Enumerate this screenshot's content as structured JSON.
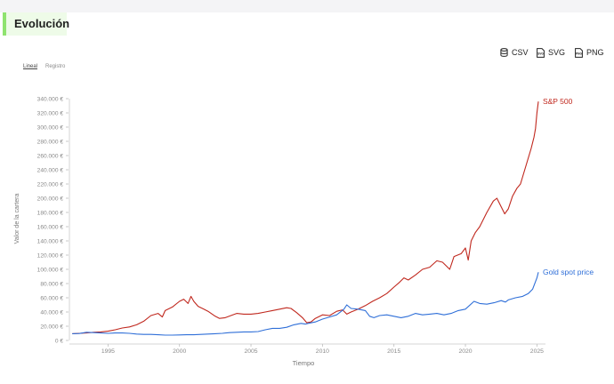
{
  "header": {
    "title": "Evolución"
  },
  "toolbar": {
    "csv_label": "CSV",
    "svg_label": "SVG",
    "png_label": "PNG",
    "svg_icon_text": "SVG",
    "png_icon_text": "PNG"
  },
  "scale_toggle": {
    "linear_label": "Lineal",
    "log_label": "Registro",
    "selected": "Lineal"
  },
  "chart_data": {
    "type": "line",
    "xlabel": "Tiempo",
    "ylabel": "Valor de la cartera",
    "xlim": [
      1992.3,
      2025.6
    ],
    "ylim": [
      0,
      340000
    ],
    "x_ticks": [
      1995,
      2000,
      2005,
      2010,
      2015,
      2020,
      2025
    ],
    "x_tick_labels": [
      "1995",
      "2000",
      "2005",
      "2010",
      "2015",
      "2020",
      "2025"
    ],
    "y_ticks": [
      0,
      20000,
      40000,
      60000,
      80000,
      100000,
      120000,
      140000,
      160000,
      180000,
      200000,
      220000,
      240000,
      260000,
      280000,
      300000,
      320000,
      340000
    ],
    "y_tick_labels": [
      "0 €",
      "20.000 €",
      "40.000 €",
      "60.000 €",
      "80.000 €",
      "100.000 €",
      "120.000 €",
      "140.000 €",
      "160.000 €",
      "180.000 €",
      "200.000 €",
      "220.000 €",
      "240.000 €",
      "260.000 €",
      "280.000 €",
      "300.000 €",
      "320.000 €",
      "340.000 €"
    ],
    "grid": false,
    "legend": "end-of-line labels",
    "series": [
      {
        "name": "S&P 500",
        "color": "#c0281e",
        "x": [
          1992.5,
          1993.0,
          1993.5,
          1994.0,
          1994.5,
          1995.0,
          1995.5,
          1996.0,
          1996.5,
          1997.0,
          1997.5,
          1998.0,
          1998.5,
          1998.8,
          1999.0,
          1999.5,
          2000.0,
          2000.3,
          2000.6,
          2000.8,
          2001.0,
          2001.3,
          2001.7,
          2002.0,
          2002.5,
          2002.8,
          2003.2,
          2003.6,
          2004.0,
          2004.5,
          2005.0,
          2005.5,
          2006.0,
          2006.5,
          2007.0,
          2007.5,
          2007.8,
          2008.2,
          2008.6,
          2008.9,
          2009.2,
          2009.5,
          2010.0,
          2010.5,
          2011.0,
          2011.4,
          2011.7,
          2012.0,
          2012.5,
          2013.0,
          2013.5,
          2014.0,
          2014.5,
          2015.0,
          2015.4,
          2015.7,
          2016.0,
          2016.5,
          2017.0,
          2017.5,
          2018.0,
          2018.4,
          2018.9,
          2019.2,
          2019.7,
          2020.0,
          2020.2,
          2020.4,
          2020.7,
          2021.0,
          2021.5,
          2021.95,
          2022.2,
          2022.5,
          2022.75,
          2023.0,
          2023.3,
          2023.6,
          2023.85,
          2024.0,
          2024.3,
          2024.6,
          2024.8,
          2024.9,
          2025.0,
          2025.1
        ],
        "values": [
          9500,
          10000,
          10500,
          11500,
          12000,
          13000,
          15000,
          17500,
          19000,
          22000,
          27000,
          35000,
          38000,
          33000,
          42000,
          47000,
          55000,
          58000,
          52000,
          62000,
          55000,
          48000,
          44000,
          41000,
          34000,
          31000,
          32000,
          35000,
          38000,
          37000,
          37000,
          38000,
          40000,
          42000,
          44000,
          46000,
          45000,
          39000,
          32000,
          25000,
          26000,
          31000,
          36000,
          35000,
          41000,
          43000,
          37000,
          40000,
          44000,
          49000,
          55000,
          60000,
          66000,
          75000,
          82000,
          88000,
          85000,
          92000,
          100000,
          103000,
          112000,
          110000,
          100000,
          118000,
          122000,
          130000,
          113000,
          140000,
          152000,
          160000,
          180000,
          196000,
          200000,
          188000,
          178000,
          185000,
          203000,
          214000,
          220000,
          230000,
          250000,
          270000,
          286000,
          298000,
          320000,
          336000
        ]
      },
      {
        "name": "Gold spot price",
        "color": "#2f6fd8",
        "x": [
          1992.5,
          1993.0,
          1993.5,
          1994.0,
          1994.5,
          1995.0,
          1995.5,
          1996.0,
          1996.5,
          1997.0,
          1997.5,
          1998.0,
          1998.5,
          1999.0,
          1999.5,
          2000.0,
          2000.5,
          2001.0,
          2001.5,
          2002.0,
          2002.5,
          2003.0,
          2003.5,
          2004.0,
          2004.5,
          2005.0,
          2005.5,
          2006.0,
          2006.5,
          2007.0,
          2007.5,
          2008.0,
          2008.5,
          2008.8,
          2009.0,
          2009.5,
          2010.0,
          2010.5,
          2011.0,
          2011.5,
          2011.7,
          2012.0,
          2012.5,
          2013.0,
          2013.3,
          2013.6,
          2014.0,
          2014.5,
          2015.0,
          2015.5,
          2016.0,
          2016.5,
          2017.0,
          2017.5,
          2018.0,
          2018.5,
          2019.0,
          2019.5,
          2020.0,
          2020.6,
          2021.0,
          2021.5,
          2022.0,
          2022.5,
          2022.8,
          2023.0,
          2023.5,
          2024.0,
          2024.4,
          2024.7,
          2025.0,
          2025.1
        ],
        "values": [
          9500,
          9800,
          11500,
          11000,
          10500,
          10000,
          10500,
          10500,
          10000,
          9000,
          8500,
          8500,
          8000,
          7500,
          7500,
          7800,
          8000,
          8000,
          8500,
          9000,
          9500,
          10000,
          11000,
          11500,
          12000,
          12000,
          12500,
          15000,
          17000,
          17000,
          18500,
          22000,
          24000,
          23000,
          24000,
          26000,
          30000,
          33000,
          36000,
          44000,
          50000,
          45000,
          44000,
          42000,
          34000,
          32000,
          35000,
          36000,
          34000,
          32000,
          34000,
          38000,
          36000,
          37000,
          38000,
          36000,
          38000,
          42000,
          44000,
          55000,
          52000,
          51000,
          53000,
          56000,
          54000,
          57000,
          60000,
          62000,
          66000,
          72000,
          88000,
          96000
        ]
      }
    ]
  }
}
